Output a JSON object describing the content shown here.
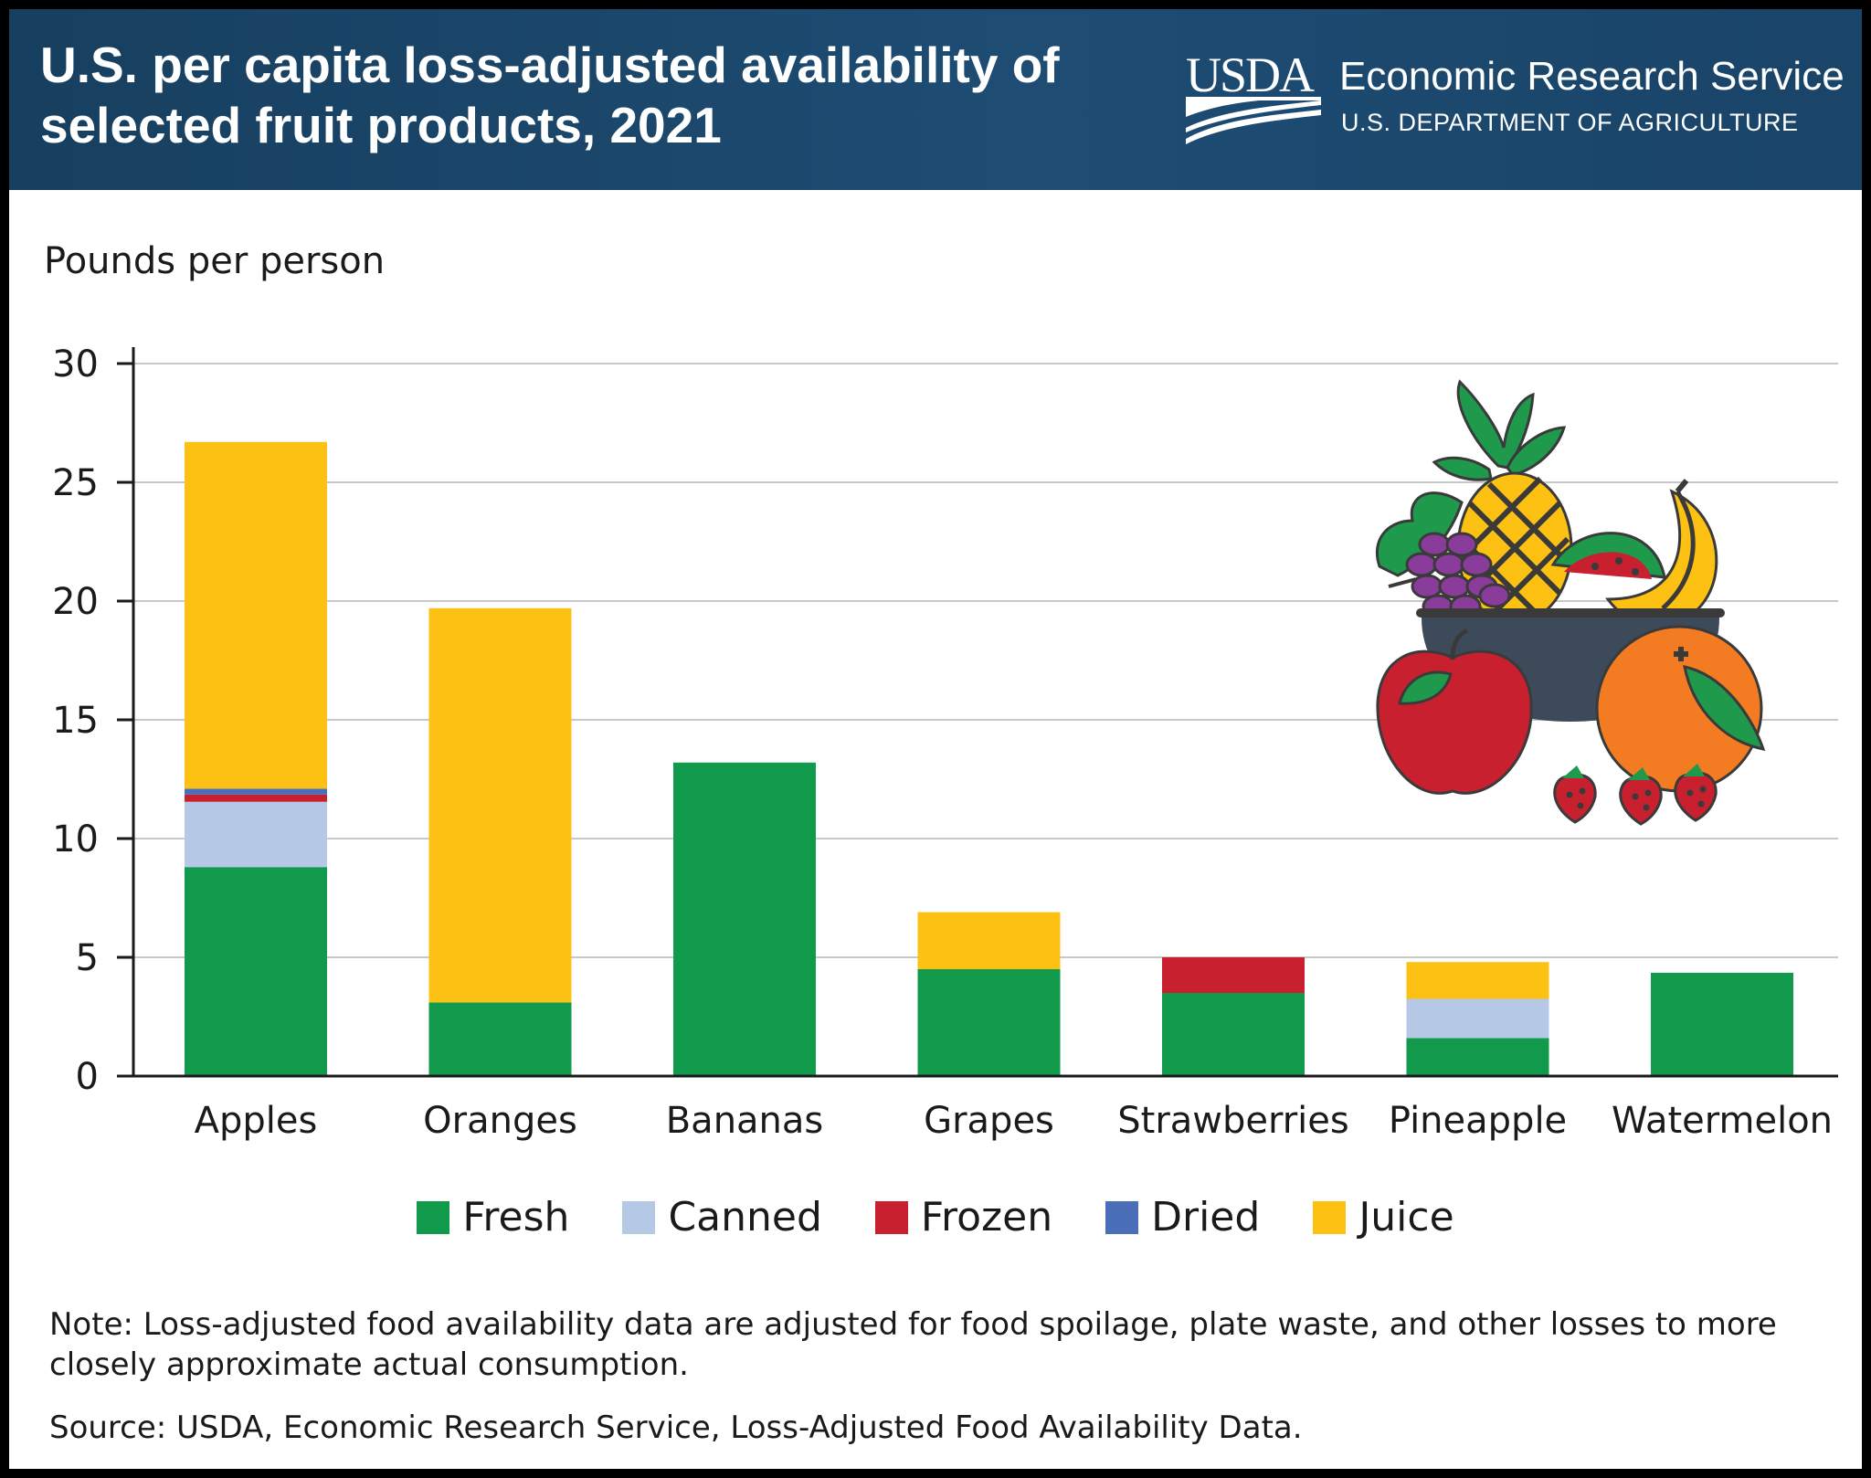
{
  "header": {
    "title": "U.S. per capita loss-adjusted availability of selected fruit products, 2021",
    "logo_text": "USDA",
    "agency_name": "Economic Research Service",
    "agency_department": "U.S. DEPARTMENT OF AGRICULTURE"
  },
  "colors": {
    "header_background": "#1b4466",
    "fresh": "#119a4c",
    "canned": "#b5c8e6",
    "frozen": "#c8202f",
    "dried": "#4a6fb8",
    "juice": "#fcc112",
    "gridline": "#c8c8c8"
  },
  "illustration": {
    "icon": "fruit-basket-icon"
  },
  "chart_data": {
    "type": "bar",
    "stacked": true,
    "title": "U.S. per capita loss-adjusted availability of selected fruit products, 2021",
    "ylabel": "Pounds per person",
    "xlabel": "",
    "ylim": [
      0,
      30
    ],
    "yticks": [
      0,
      5,
      10,
      15,
      20,
      25,
      30
    ],
    "grid": true,
    "legend_position": "bottom",
    "categories": [
      "Apples",
      "Oranges",
      "Bananas",
      "Grapes",
      "Strawberries",
      "Pineapple",
      "Watermelon"
    ],
    "series": [
      {
        "name": "Fresh",
        "color": "#119a4c",
        "values": [
          8.8,
          3.1,
          13.2,
          4.5,
          3.5,
          1.6,
          4.35
        ]
      },
      {
        "name": "Canned",
        "color": "#b5c8e6",
        "values": [
          2.75,
          0,
          0,
          0,
          0,
          1.65,
          0
        ]
      },
      {
        "name": "Frozen",
        "color": "#c8202f",
        "values": [
          0.3,
          0,
          0,
          0,
          1.5,
          0,
          0
        ]
      },
      {
        "name": "Dried",
        "color": "#4a6fb8",
        "values": [
          0.25,
          0,
          0,
          0,
          0,
          0,
          0
        ]
      },
      {
        "name": "Juice",
        "color": "#fcc112",
        "values": [
          14.6,
          16.6,
          0,
          2.4,
          0,
          1.55,
          0
        ]
      }
    ]
  },
  "footer": {
    "note": "Note: Loss-adjusted food availability data are adjusted for food spoilage, plate waste, and other losses to more closely approximate actual consumption.",
    "source": "Source: USDA, Economic Research Service, Loss-Adjusted Food Availability Data."
  }
}
